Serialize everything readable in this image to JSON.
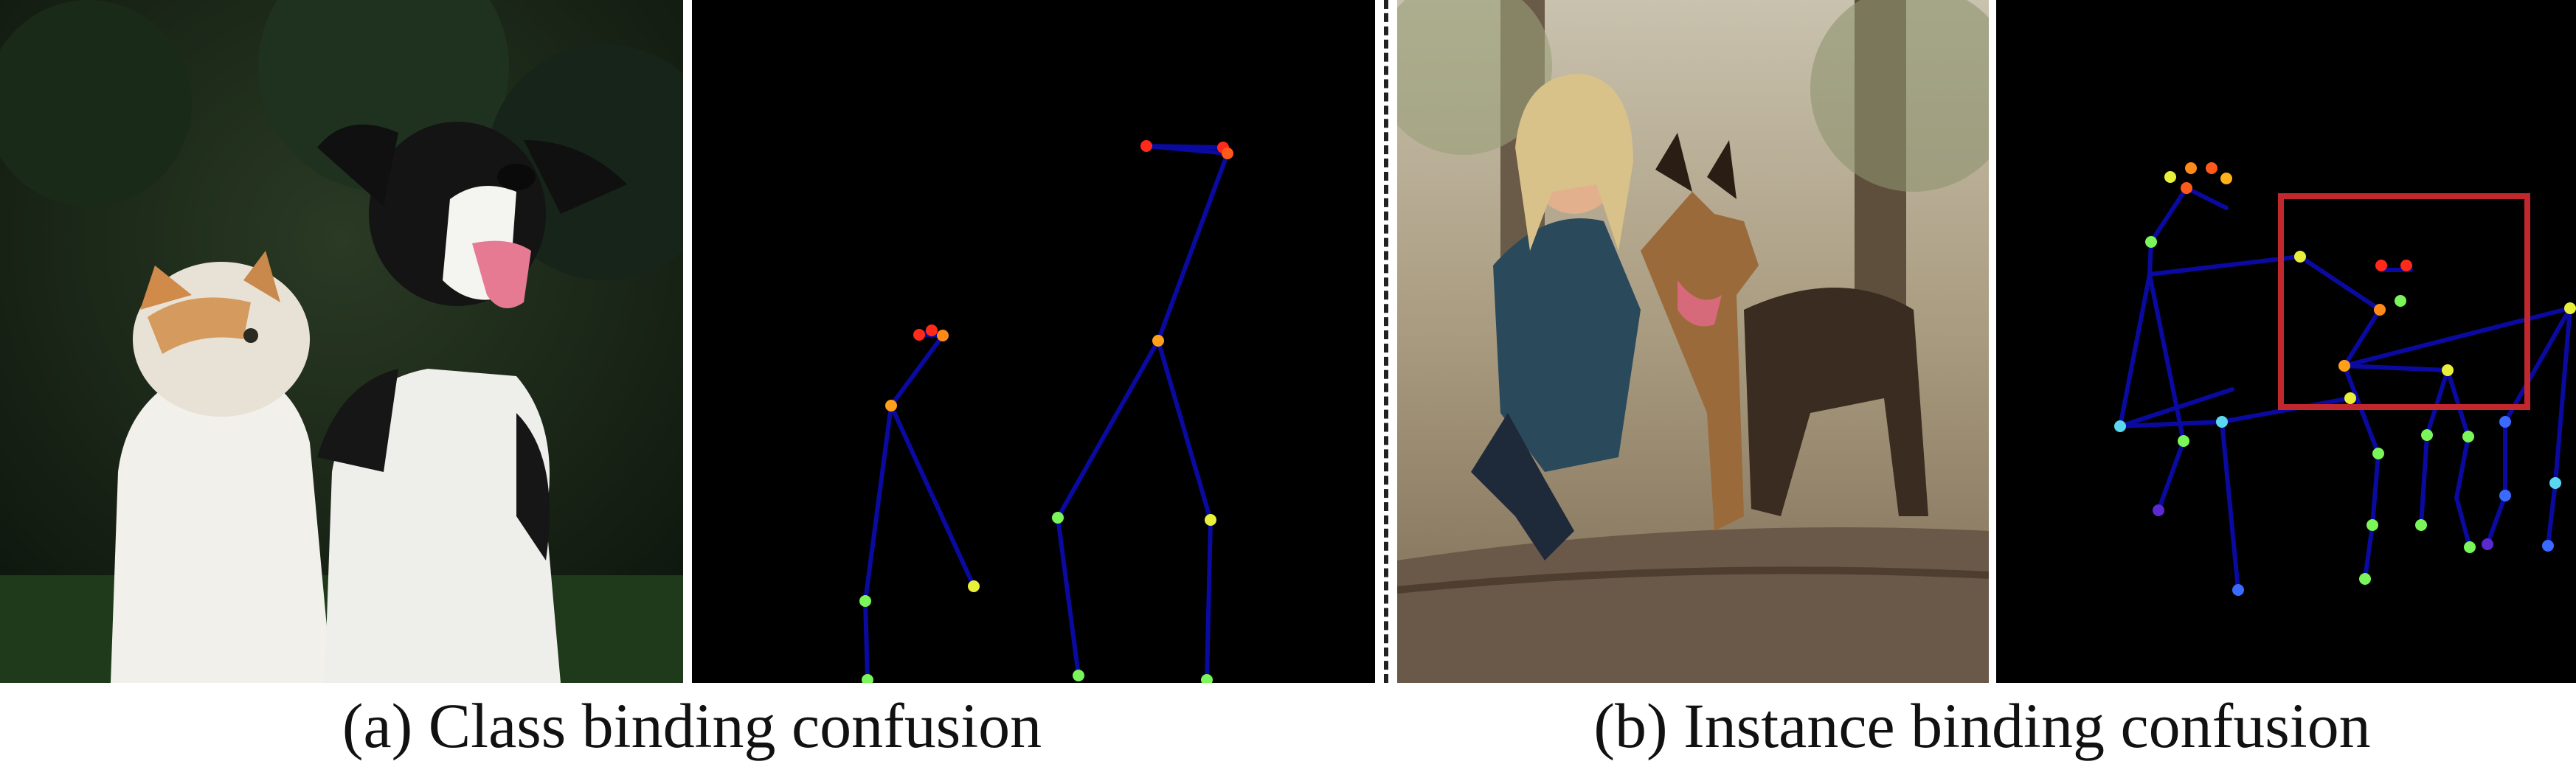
{
  "captions": {
    "a": "(a) Class binding confusion",
    "b": "(b) Instance binding confusion"
  },
  "photos": {
    "a": "Photograph: white kitten with orange ears beside a black-and-white puppy with tongue out, dark trees in background",
    "b": "Photograph: smiling blonde woman in a blue jacket kneeling and hugging a German Shepherd on a fallen log in a forest"
  },
  "colors": {
    "background": "#000000",
    "limb": "#0a0aa0",
    "highlight_box": "#c0282d",
    "joint_red": "#ff2a1a",
    "joint_orange": "#ff8a1a",
    "joint_yellow": "#e8f03a",
    "joint_green": "#7af55a",
    "joint_cyan": "#5ad8f0",
    "joint_blue": "#3a6aff",
    "joint_purple": "#5a2ad0"
  }
}
